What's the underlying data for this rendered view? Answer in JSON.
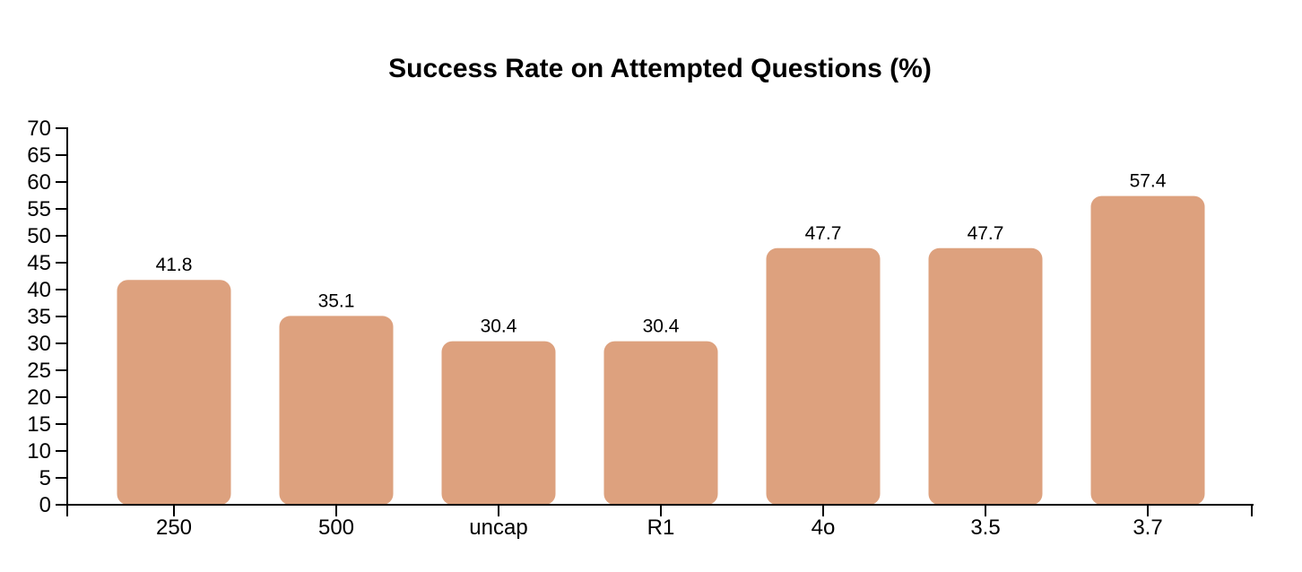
{
  "chart_data": {
    "type": "bar",
    "title": "Success Rate on Attempted Questions (%)",
    "categories": [
      "250",
      "500",
      "uncap",
      "R1",
      "4o",
      "3.5",
      "3.7"
    ],
    "values": [
      41.8,
      35.1,
      30.4,
      30.4,
      47.7,
      47.7,
      57.4
    ],
    "value_labels": [
      "41.8",
      "35.1",
      "30.4",
      "30.4",
      "47.7",
      "47.7",
      "57.4"
    ],
    "xlabel": "",
    "ylabel": "",
    "ylim": [
      0,
      70
    ],
    "ytick_step": 5,
    "y_tick_labels": [
      "0",
      "5",
      "10",
      "15",
      "20",
      "25",
      "30",
      "35",
      "40",
      "45",
      "50",
      "55",
      "60",
      "65",
      "70"
    ],
    "grid": false,
    "legend": null
  },
  "colors": {
    "bar": "#DDA17E",
    "axis": "#000000",
    "text": "#000000",
    "background": "#FFFFFF"
  }
}
